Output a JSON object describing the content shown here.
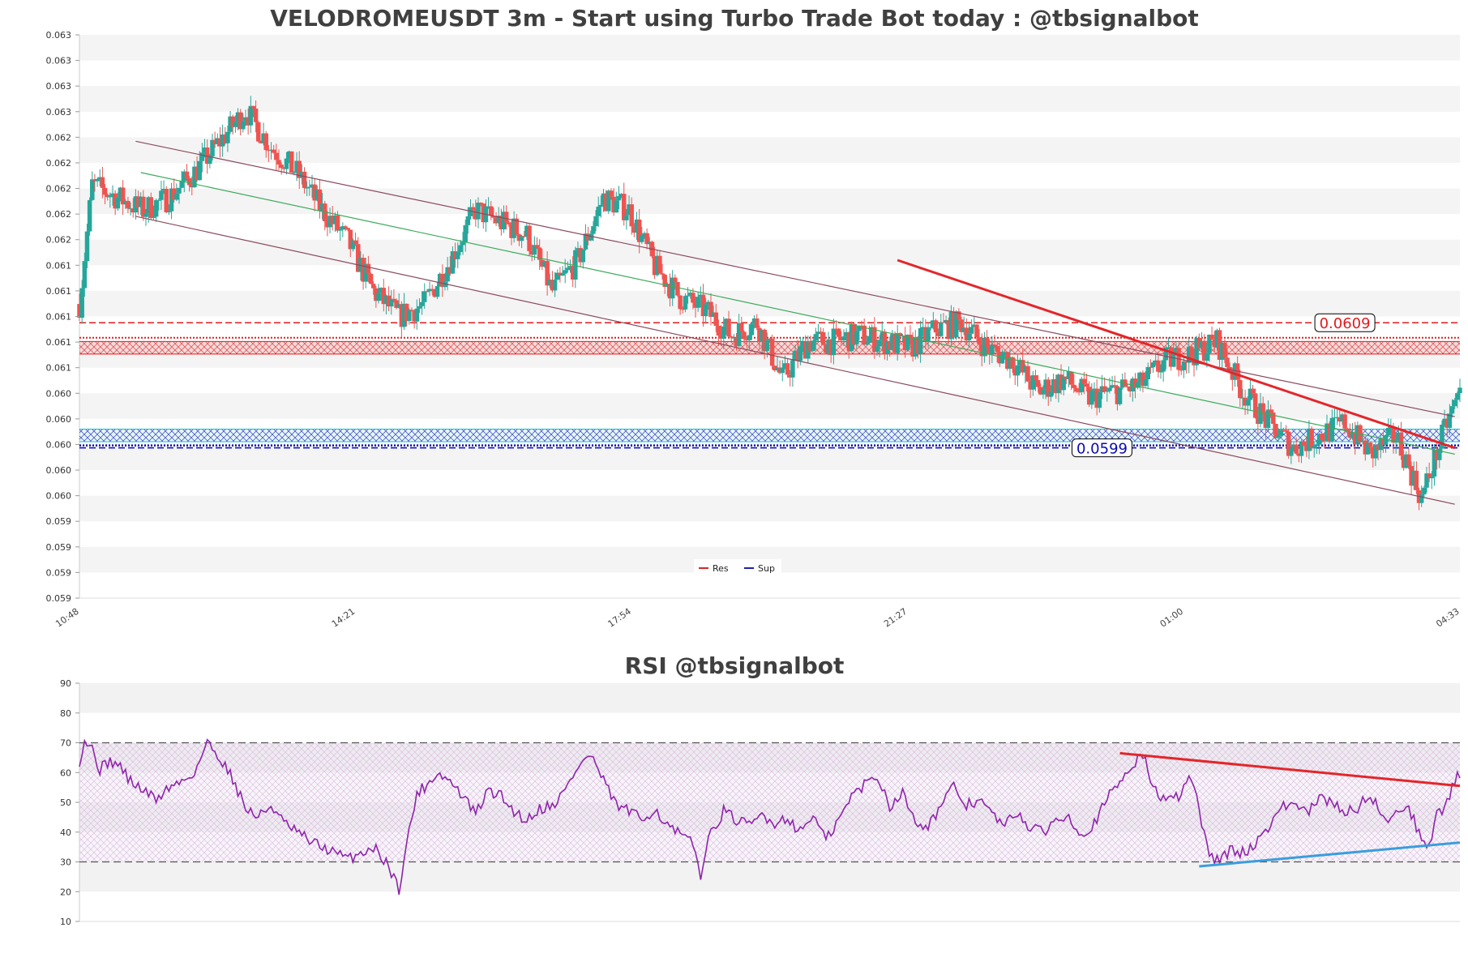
{
  "chart_data": [
    {
      "type": "candlestick",
      "title": "VELODROMEUSDT 3m - Start using Turbo Trade Bot today : @tbsignalbot",
      "y_tick_labels": [
        "0.063",
        "0.063",
        "0.063",
        "0.063",
        "0.062",
        "0.062",
        "0.062",
        "0.062",
        "0.062",
        "0.061",
        "0.061",
        "0.061",
        "0.061",
        "0.061",
        "0.060",
        "0.060",
        "0.060",
        "0.060",
        "0.060",
        "0.059",
        "0.059",
        "0.059",
        "0.059"
      ],
      "ylim": [
        0.0587,
        0.0632
      ],
      "x_tick_labels": [
        "10:48",
        "14:21",
        "17:54",
        "21:27",
        "01:00",
        "04:33"
      ],
      "x_range": [
        0,
        540
      ],
      "grid": true,
      "legend": {
        "position": "bottom-center",
        "entries": [
          {
            "name": "Res",
            "color": "#d62728"
          },
          {
            "name": "Sup",
            "color": "#1f1fb4"
          }
        ]
      },
      "levels": [
        {
          "name": "Res",
          "value": 0.0609,
          "label": "0.0609",
          "color": "#e31a1c",
          "zone": [
            0.06065,
            0.06075
          ]
        },
        {
          "name": "Sup",
          "value": 0.0599,
          "label": "0.0599",
          "color": "#0a0ab4",
          "zone": [
            0.05995,
            0.06005
          ]
        }
      ],
      "close_anchors": [
        [
          0,
          0.06105
        ],
        [
          5,
          0.062
        ],
        [
          15,
          0.0619
        ],
        [
          25,
          0.0618
        ],
        [
          35,
          0.0619
        ],
        [
          45,
          0.0621
        ],
        [
          55,
          0.06235
        ],
        [
          65,
          0.0626
        ],
        [
          75,
          0.0623
        ],
        [
          85,
          0.0621
        ],
        [
          95,
          0.0618
        ],
        [
          105,
          0.06155
        ],
        [
          115,
          0.06115
        ],
        [
          125,
          0.06095
        ],
        [
          135,
          0.06105
        ],
        [
          145,
          0.0614
        ],
        [
          155,
          0.0618
        ],
        [
          165,
          0.0617
        ],
        [
          175,
          0.0616
        ],
        [
          185,
          0.06115
        ],
        [
          195,
          0.0614
        ],
        [
          205,
          0.0619
        ],
        [
          215,
          0.0618
        ],
        [
          225,
          0.06135
        ],
        [
          235,
          0.0611
        ],
        [
          245,
          0.061
        ],
        [
          255,
          0.0608
        ],
        [
          265,
          0.0609
        ],
        [
          275,
          0.06045
        ],
        [
          285,
          0.06075
        ],
        [
          295,
          0.06075
        ],
        [
          305,
          0.0608
        ],
        [
          315,
          0.06075
        ],
        [
          325,
          0.0607
        ],
        [
          335,
          0.06085
        ],
        [
          345,
          0.0609
        ],
        [
          355,
          0.0607
        ],
        [
          365,
          0.0606
        ],
        [
          375,
          0.06035
        ],
        [
          385,
          0.06045
        ],
        [
          395,
          0.0603
        ],
        [
          405,
          0.06035
        ],
        [
          415,
          0.0604
        ],
        [
          425,
          0.0606
        ],
        [
          435,
          0.06065
        ],
        [
          445,
          0.06075
        ],
        [
          455,
          0.06035
        ],
        [
          465,
          0.0601
        ],
        [
          475,
          0.0599
        ],
        [
          485,
          0.06
        ],
        [
          495,
          0.0601
        ],
        [
          505,
          0.05985
        ],
        [
          515,
          0.06
        ],
        [
          525,
          0.0595
        ],
        [
          535,
          0.0601
        ],
        [
          540,
          0.06035
        ]
      ],
      "trendlines": [
        {
          "name": "channel-upper",
          "color": "#8b4a5c",
          "points": [
            [
              22,
              0.06235
            ],
            [
              538,
              0.06015
            ]
          ]
        },
        {
          "name": "channel-lower",
          "color": "#8b4a5c",
          "points": [
            [
              22,
              0.06175
            ],
            [
              538,
              0.05945
            ]
          ]
        },
        {
          "name": "channel-middle",
          "color": "#3daa5c",
          "points": [
            [
              24,
              0.0621
            ],
            [
              538,
              0.05985
            ]
          ]
        },
        {
          "name": "resistance-trend",
          "color": "#e3262a",
          "points": [
            [
              320,
              0.0614
            ],
            [
              538,
              0.0599
            ]
          ]
        }
      ]
    },
    {
      "type": "line",
      "title": "RSI @tbsignalbot",
      "y_tick_labels": [
        "90",
        "80",
        "70",
        "60",
        "50",
        "40",
        "30",
        "20",
        "10"
      ],
      "ylim": [
        10,
        90
      ],
      "x_range": [
        0,
        540
      ],
      "grid": true,
      "reference_levels": [
        70,
        30
      ],
      "rsi_anchors": [
        [
          0,
          64
        ],
        [
          2,
          71
        ],
        [
          5,
          68
        ],
        [
          8,
          61
        ],
        [
          12,
          64
        ],
        [
          16,
          62
        ],
        [
          20,
          57
        ],
        [
          25,
          54
        ],
        [
          30,
          51
        ],
        [
          35,
          55
        ],
        [
          40,
          57
        ],
        [
          45,
          60
        ],
        [
          50,
          70
        ],
        [
          55,
          65
        ],
        [
          60,
          58
        ],
        [
          65,
          48
        ],
        [
          70,
          45
        ],
        [
          75,
          49
        ],
        [
          80,
          43
        ],
        [
          85,
          40
        ],
        [
          90,
          37
        ],
        [
          95,
          35
        ],
        [
          100,
          33
        ],
        [
          105,
          31
        ],
        [
          110,
          33
        ],
        [
          115,
          35
        ],
        [
          120,
          30
        ],
        [
          125,
          21
        ],
        [
          128,
          36
        ],
        [
          132,
          53
        ],
        [
          136,
          56
        ],
        [
          140,
          60
        ],
        [
          145,
          57
        ],
        [
          150,
          52
        ],
        [
          155,
          46
        ],
        [
          160,
          54
        ],
        [
          165,
          52
        ],
        [
          170,
          47
        ],
        [
          175,
          44
        ],
        [
          180,
          48
        ],
        [
          185,
          49
        ],
        [
          190,
          54
        ],
        [
          195,
          62
        ],
        [
          200,
          66
        ],
        [
          205,
          57
        ],
        [
          210,
          49
        ],
        [
          215,
          47
        ],
        [
          220,
          44
        ],
        [
          225,
          48
        ],
        [
          230,
          42
        ],
        [
          235,
          39
        ],
        [
          240,
          36
        ],
        [
          243,
          26
        ],
        [
          247,
          40
        ],
        [
          252,
          47
        ],
        [
          257,
          44
        ],
        [
          262,
          42
        ],
        [
          267,
          46
        ],
        [
          272,
          43
        ],
        [
          277,
          45
        ],
        [
          282,
          40
        ],
        [
          287,
          46
        ],
        [
          292,
          37
        ],
        [
          297,
          44
        ],
        [
          302,
          52
        ],
        [
          307,
          56
        ],
        [
          312,
          59
        ],
        [
          317,
          49
        ],
        [
          322,
          53
        ],
        [
          327,
          44
        ],
        [
          332,
          42
        ],
        [
          337,
          49
        ],
        [
          342,
          55
        ],
        [
          347,
          49
        ],
        [
          352,
          51
        ],
        [
          357,
          46
        ],
        [
          362,
          42
        ],
        [
          367,
          47
        ],
        [
          372,
          41
        ],
        [
          377,
          40
        ],
        [
          382,
          44
        ],
        [
          387,
          46
        ],
        [
          392,
          39
        ],
        [
          397,
          43
        ],
        [
          402,
          51
        ],
        [
          407,
          57
        ],
        [
          412,
          63
        ],
        [
          416,
          66
        ],
        [
          420,
          55
        ],
        [
          425,
          50
        ],
        [
          430,
          52
        ],
        [
          435,
          59
        ],
        [
          438,
          47
        ],
        [
          441,
          35
        ],
        [
          444,
          31
        ],
        [
          447,
          31
        ],
        [
          450,
          34
        ],
        [
          455,
          33
        ],
        [
          460,
          36
        ],
        [
          465,
          42
        ],
        [
          470,
          48
        ],
        [
          475,
          50
        ],
        [
          480,
          46
        ],
        [
          485,
          51
        ],
        [
          490,
          50
        ],
        [
          495,
          47
        ],
        [
          500,
          48
        ],
        [
          505,
          53
        ],
        [
          510,
          44
        ],
        [
          515,
          47
        ],
        [
          520,
          48
        ],
        [
          525,
          38
        ],
        [
          528,
          35
        ],
        [
          531,
          48
        ],
        [
          534,
          47
        ],
        [
          537,
          55
        ],
        [
          540,
          60
        ]
      ],
      "trendlines": [
        {
          "name": "rsi-resistance",
          "color": "#e3262a",
          "points": [
            [
              407,
              66.5
            ],
            [
              540,
              55.5
            ]
          ]
        },
        {
          "name": "rsi-support",
          "color": "#3b9ddd",
          "points": [
            [
              438,
              28.5
            ],
            [
              540,
              36.5
            ]
          ]
        }
      ]
    }
  ]
}
